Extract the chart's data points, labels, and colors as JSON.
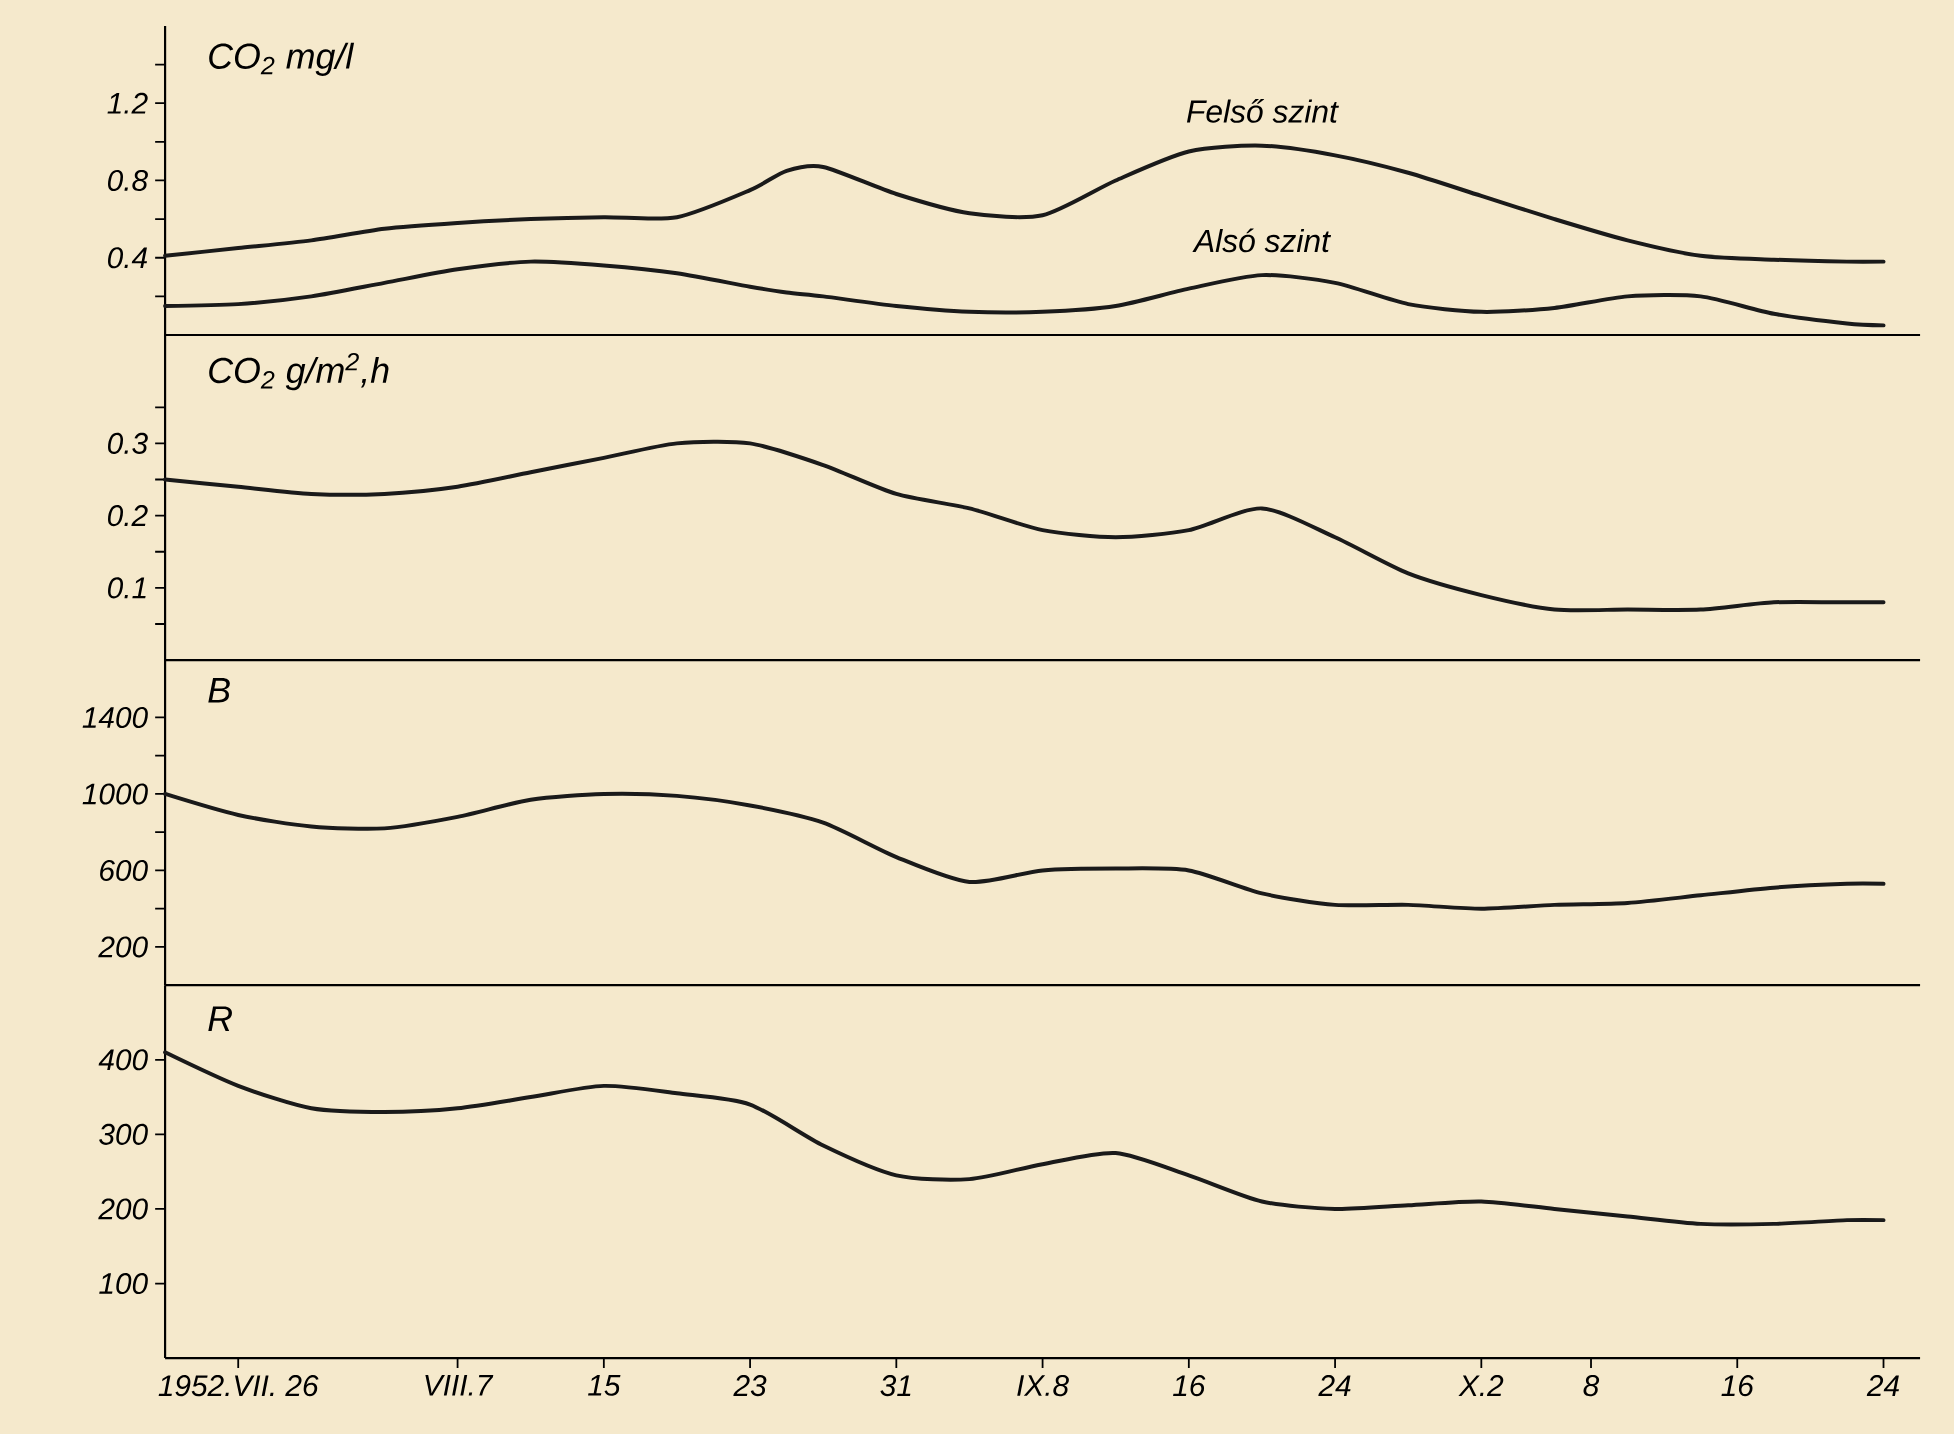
{
  "chart_data": [
    {
      "type": "line",
      "title": "CO$_{2}$ mg/l",
      "tick_labels": "y",
      "x": [
        "1952-07-22",
        "1952-07-26",
        "1952-07-30",
        "1952-08-03",
        "1952-08-07",
        "1952-08-11",
        "1952-08-15",
        "1952-08-19",
        "1952-08-23",
        "1952-08-25",
        "1952-08-27",
        "1952-08-31",
        "1952-09-04",
        "1952-09-08",
        "1952-09-12",
        "1952-09-16",
        "1952-09-20",
        "1952-09-24",
        "1952-09-28",
        "1952-10-02",
        "1952-10-06",
        "1952-10-10",
        "1952-10-14",
        "1952-10-18",
        "1952-10-22",
        "1952-10-24"
      ],
      "series": [
        {
          "name": "Felső szint",
          "color": "#1a1a1a",
          "values": [
            0.41,
            0.45,
            0.49,
            0.55,
            0.58,
            0.6,
            0.61,
            0.61,
            0.75,
            0.85,
            0.87,
            0.73,
            0.63,
            0.62,
            0.8,
            0.95,
            0.98,
            0.93,
            0.84,
            0.72,
            0.6,
            0.49,
            0.41,
            0.39,
            0.38,
            0.38
          ]
        },
        {
          "name": "Alsó szint",
          "color": "#1a1a1a",
          "values": [
            0.15,
            0.16,
            0.2,
            0.27,
            0.34,
            0.38,
            0.36,
            0.32,
            0.25,
            0.22,
            0.2,
            0.15,
            0.12,
            0.12,
            0.15,
            0.24,
            0.31,
            0.27,
            0.16,
            0.12,
            0.14,
            0.2,
            0.2,
            0.11,
            0.06,
            0.05
          ]
        }
      ],
      "xlim": [
        "1952-07-22",
        "1952-10-26"
      ],
      "ylim": [
        0,
        1.6
      ],
      "yticks": [
        {
          "value": 0.2,
          "label": null
        },
        0.4,
        {
          "value": 0.6,
          "label": null
        },
        0.8,
        {
          "value": 1.0,
          "label": null
        },
        1.2,
        {
          "value": 1.4,
          "label": null
        }
      ]
    },
    {
      "type": "line",
      "title": "CO$_{2}$ g/m$^{2}$,h",
      "tick_labels": "y",
      "x": [
        "1952-07-22",
        "1952-07-26",
        "1952-07-30",
        "1952-08-03",
        "1952-08-07",
        "1952-08-11",
        "1952-08-15",
        "1952-08-19",
        "1952-08-23",
        "1952-08-27",
        "1952-08-31",
        "1952-09-04",
        "1952-09-08",
        "1952-09-12",
        "1952-09-16",
        "1952-09-20",
        "1952-09-24",
        "1952-09-28",
        "1952-10-02",
        "1952-10-06",
        "1952-10-10",
        "1952-10-14",
        "1952-10-18",
        "1952-10-22",
        "1952-10-24"
      ],
      "series": [
        {
          "color": "#1a1a1a",
          "values": [
            0.25,
            0.24,
            0.23,
            0.23,
            0.24,
            0.26,
            0.28,
            0.3,
            0.3,
            0.27,
            0.23,
            0.21,
            0.18,
            0.17,
            0.18,
            0.21,
            0.17,
            0.12,
            0.09,
            0.07,
            0.07,
            0.07,
            0.08,
            0.08,
            0.08
          ]
        }
      ],
      "xlim": [
        "1952-07-22",
        "1952-10-26"
      ],
      "ylim": [
        0,
        0.45
      ],
      "yticks": [
        {
          "value": 0.05,
          "label": null
        },
        0.1,
        {
          "value": 0.15,
          "label": null
        },
        0.2,
        {
          "value": 0.25,
          "label": null
        },
        0.3,
        {
          "value": 0.35,
          "label": null
        }
      ]
    },
    {
      "type": "line",
      "title": "B",
      "tick_labels": "y",
      "x": [
        "1952-07-22",
        "1952-07-26",
        "1952-07-30",
        "1952-08-03",
        "1952-08-07",
        "1952-08-11",
        "1952-08-15",
        "1952-08-19",
        "1952-08-23",
        "1952-08-27",
        "1952-08-31",
        "1952-09-04",
        "1952-09-08",
        "1952-09-12",
        "1952-09-16",
        "1952-09-20",
        "1952-09-24",
        "1952-09-28",
        "1952-10-02",
        "1952-10-06",
        "1952-10-10",
        "1952-10-14",
        "1952-10-18",
        "1952-10-22",
        "1952-10-24"
      ],
      "series": [
        {
          "color": "#1a1a1a",
          "values": [
            1000,
            890,
            830,
            820,
            880,
            970,
            1000,
            990,
            940,
            850,
            670,
            540,
            600,
            610,
            600,
            480,
            420,
            420,
            400,
            420,
            430,
            470,
            510,
            530,
            530
          ]
        }
      ],
      "xlim": [
        "1952-07-22",
        "1952-10-26"
      ],
      "ylim": [
        0,
        1700
      ],
      "yticks": [
        200,
        {
          "value": 400,
          "label": null
        },
        600,
        {
          "value": 800,
          "label": null
        },
        1000,
        {
          "value": 1200,
          "label": null
        },
        1400
      ]
    },
    {
      "type": "line",
      "title": "R",
      "x": [
        "1952-07-22",
        "1952-07-26",
        "1952-07-30",
        "1952-08-03",
        "1952-08-07",
        "1952-08-11",
        "1952-08-15",
        "1952-08-19",
        "1952-08-23",
        "1952-08-27",
        "1952-08-31",
        "1952-09-04",
        "1952-09-08",
        "1952-09-12",
        "1952-09-16",
        "1952-09-20",
        "1952-09-24",
        "1952-09-28",
        "1952-10-02",
        "1952-10-06",
        "1952-10-10",
        "1952-10-14",
        "1952-10-18",
        "1952-10-22",
        "1952-10-24"
      ],
      "series": [
        {
          "color": "#1a1a1a",
          "values": [
            410,
            365,
            335,
            330,
            335,
            350,
            365,
            355,
            340,
            285,
            245,
            240,
            260,
            275,
            245,
            210,
            200,
            205,
            210,
            200,
            190,
            180,
            180,
            185,
            185
          ]
        }
      ],
      "xlim": [
        "1952-07-22",
        "1952-10-26"
      ],
      "ylim": [
        0,
        500
      ],
      "yticks": [
        100,
        200,
        300,
        400
      ],
      "xticks": [
        {
          "value": "1952-07-26",
          "label": "1952.VII. 26"
        },
        {
          "value": "1952-08-07",
          "label": "VIII.7"
        },
        {
          "value": "1952-08-15",
          "label": "15"
        },
        {
          "value": "1952-08-23",
          "label": "23"
        },
        {
          "value": "1952-08-31",
          "label": "31"
        },
        {
          "value": "1952-09-08",
          "label": "IX.8"
        },
        {
          "value": "1952-09-16",
          "label": "16"
        },
        {
          "value": "1952-09-24",
          "label": "24"
        },
        {
          "value": "1952-10-02",
          "label": "X.2"
        },
        {
          "value": "1952-10-08",
          "label": "8"
        },
        {
          "value": "1952-10-16",
          "label": "16"
        },
        {
          "value": "1952-10-24",
          "label": "24"
        }
      ]
    }
  ]
}
